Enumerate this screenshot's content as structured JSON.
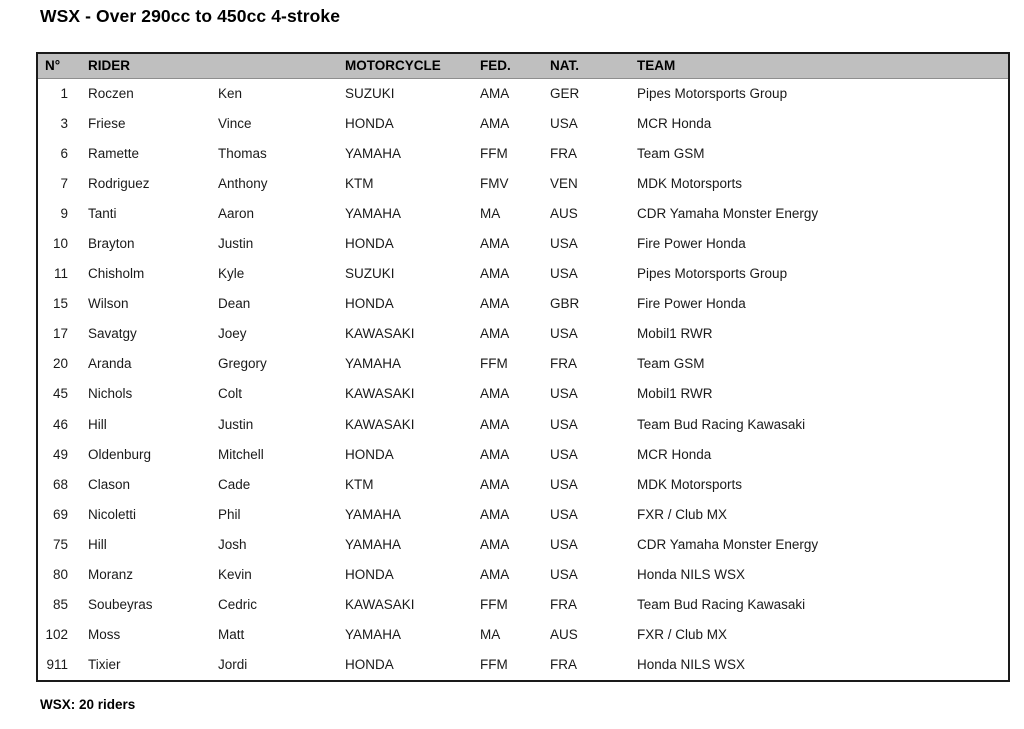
{
  "title": "WSX - Over 290cc to 450cc 4-stroke",
  "footer": "WSX: 20 riders",
  "colors": {
    "header_bg": "#bfbfbf",
    "border": "#1a1a1a",
    "text": "#1a1a1a"
  },
  "table": {
    "headers": {
      "number": "N°",
      "rider": "RIDER",
      "motorcycle": "MOTORCYCLE",
      "fed": "FED.",
      "nat": "NAT.",
      "team": "TEAM"
    },
    "rows": [
      {
        "number": "1",
        "last": "Roczen",
        "first": "Ken",
        "motorcycle": "SUZUKI",
        "fed": "AMA",
        "nat": "GER",
        "team": "Pipes Motorsports Group"
      },
      {
        "number": "3",
        "last": "Friese",
        "first": "Vince",
        "motorcycle": "HONDA",
        "fed": "AMA",
        "nat": "USA",
        "team": "MCR Honda"
      },
      {
        "number": "6",
        "last": "Ramette",
        "first": "Thomas",
        "motorcycle": "YAMAHA",
        "fed": "FFM",
        "nat": "FRA",
        "team": "Team GSM"
      },
      {
        "number": "7",
        "last": "Rodriguez",
        "first": "Anthony",
        "motorcycle": "KTM",
        "fed": "FMV",
        "nat": "VEN",
        "team": "MDK Motorsports"
      },
      {
        "number": "9",
        "last": "Tanti",
        "first": "Aaron",
        "motorcycle": "YAMAHA",
        "fed": "MA",
        "nat": "AUS",
        "team": "CDR Yamaha Monster Energy"
      },
      {
        "number": "10",
        "last": "Brayton",
        "first": "Justin",
        "motorcycle": "HONDA",
        "fed": "AMA",
        "nat": "USA",
        "team": "Fire Power Honda"
      },
      {
        "number": "11",
        "last": "Chisholm",
        "first": "Kyle",
        "motorcycle": "SUZUKI",
        "fed": "AMA",
        "nat": "USA",
        "team": "Pipes Motorsports Group"
      },
      {
        "number": "15",
        "last": "Wilson",
        "first": "Dean",
        "motorcycle": "HONDA",
        "fed": "AMA",
        "nat": "GBR",
        "team": "Fire Power Honda"
      },
      {
        "number": "17",
        "last": "Savatgy",
        "first": "Joey",
        "motorcycle": "KAWASAKI",
        "fed": "AMA",
        "nat": "USA",
        "team": "Mobil1 RWR"
      },
      {
        "number": "20",
        "last": "Aranda",
        "first": "Gregory",
        "motorcycle": "YAMAHA",
        "fed": "FFM",
        "nat": "FRA",
        "team": "Team GSM"
      },
      {
        "number": "45",
        "last": "Nichols",
        "first": "Colt",
        "motorcycle": "KAWASAKI",
        "fed": "AMA",
        "nat": "USA",
        "team": "Mobil1 RWR"
      },
      {
        "number": "46",
        "last": "Hill",
        "first": "Justin",
        "motorcycle": "KAWASAKI",
        "fed": "AMA",
        "nat": "USA",
        "team": "Team Bud Racing Kawasaki"
      },
      {
        "number": "49",
        "last": "Oldenburg",
        "first": "Mitchell",
        "motorcycle": "HONDA",
        "fed": "AMA",
        "nat": "USA",
        "team": "MCR Honda"
      },
      {
        "number": "68",
        "last": "Clason",
        "first": "Cade",
        "motorcycle": "KTM",
        "fed": "AMA",
        "nat": "USA",
        "team": "MDK Motorsports"
      },
      {
        "number": "69",
        "last": "Nicoletti",
        "first": "Phil",
        "motorcycle": "YAMAHA",
        "fed": "AMA",
        "nat": "USA",
        "team": "FXR / Club MX"
      },
      {
        "number": "75",
        "last": "Hill",
        "first": "Josh",
        "motorcycle": "YAMAHA",
        "fed": "AMA",
        "nat": "USA",
        "team": "CDR Yamaha Monster Energy"
      },
      {
        "number": "80",
        "last": "Moranz",
        "first": "Kevin",
        "motorcycle": "HONDA",
        "fed": "AMA",
        "nat": "USA",
        "team": "Honda NILS WSX"
      },
      {
        "number": "85",
        "last": "Soubeyras",
        "first": "Cedric",
        "motorcycle": "KAWASAKI",
        "fed": "FFM",
        "nat": "FRA",
        "team": "Team Bud Racing Kawasaki"
      },
      {
        "number": "102",
        "last": "Moss",
        "first": "Matt",
        "motorcycle": "YAMAHA",
        "fed": "MA",
        "nat": "AUS",
        "team": "FXR / Club MX"
      },
      {
        "number": "911",
        "last": "Tixier",
        "first": "Jordi",
        "motorcycle": "HONDA",
        "fed": "FFM",
        "nat": "FRA",
        "team": "Honda NILS WSX"
      }
    ]
  }
}
